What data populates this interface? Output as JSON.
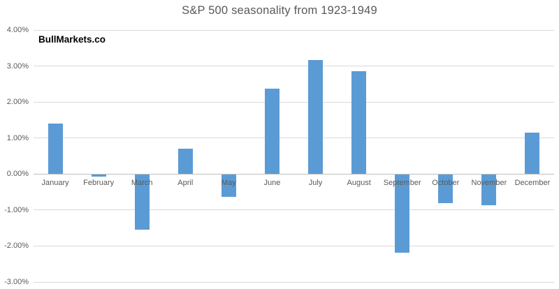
{
  "branding": {
    "watermark": "BullMarkets.co"
  },
  "chart_data": {
    "type": "bar",
    "title": "S&P 500 seasonality from 1923-1949",
    "categories": [
      "January",
      "February",
      "March",
      "April",
      "May",
      "June",
      "July",
      "August",
      "September",
      "October",
      "November",
      "December"
    ],
    "values": [
      1.4,
      -0.06,
      -1.54,
      0.71,
      -0.62,
      2.37,
      3.16,
      2.86,
      -2.18,
      -0.8,
      -0.86,
      1.14
    ],
    "value_unit": "percent",
    "xlabel": "",
    "ylabel": "",
    "ylim": [
      -3,
      4
    ],
    "y_ticks": [
      4,
      3,
      2,
      1,
      0,
      -1,
      -2,
      -3
    ],
    "y_tick_labels": [
      "4.00%",
      "3.00%",
      "2.00%",
      "1.00%",
      "0.00%",
      "-1.00%",
      "-2.00%",
      "-3.00%"
    ],
    "grid": true,
    "legend": "none",
    "colors": {
      "bar": "#5b9bd5",
      "gridline": "#d9d9d9",
      "zero_axis": "#bfbfbf",
      "axis_text": "#595959",
      "title_text": "#595959",
      "watermark_text": "#000000",
      "background": "#ffffff"
    }
  }
}
